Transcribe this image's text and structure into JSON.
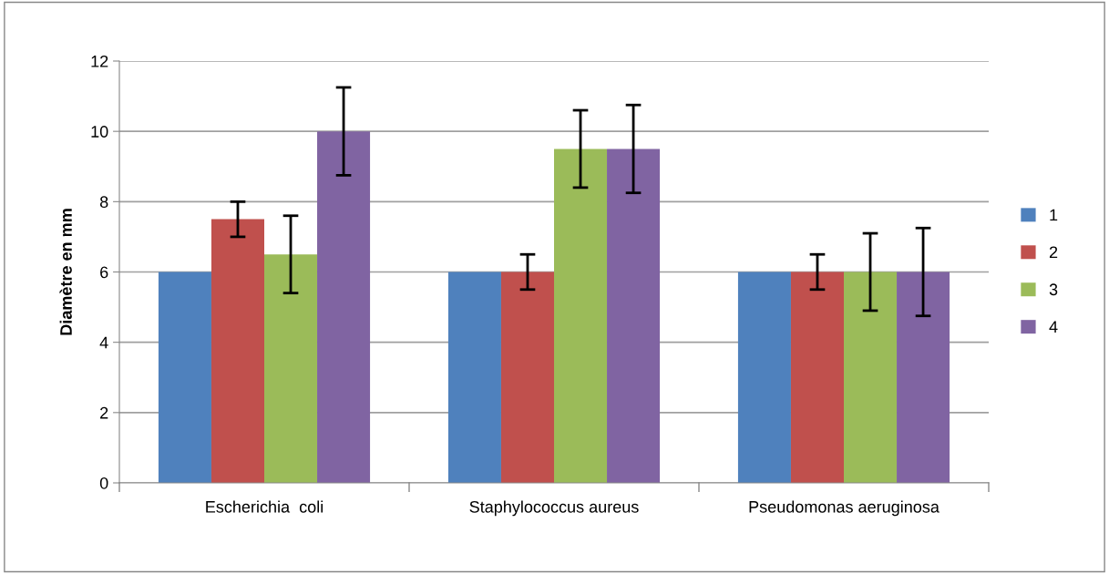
{
  "chart_data": {
    "type": "bar",
    "ylabel": "Diamètre en mm",
    "categories": [
      "Escherichia  coli",
      "Staphylococcus aureus",
      "Pseudomonas aeruginosa"
    ],
    "series": [
      {
        "name": "1",
        "color": "#4f81bd",
        "values": [
          6,
          6,
          6
        ]
      },
      {
        "name": "2",
        "color": "#c0504d",
        "values": [
          7.5,
          6,
          6
        ],
        "errors": [
          0.5,
          0.5,
          0.5
        ]
      },
      {
        "name": "3",
        "color": "#9bbb59",
        "values": [
          6.5,
          9.5,
          6
        ],
        "errors": [
          1.1,
          1.1,
          1.1
        ]
      },
      {
        "name": "4",
        "color": "#8064a2",
        "values": [
          10,
          9.5,
          6
        ],
        "errors": [
          1.25,
          1.25,
          1.25
        ]
      }
    ],
    "ylim": [
      0,
      12
    ],
    "yticks": [
      0,
      2,
      4,
      6,
      8,
      10,
      12
    ],
    "grid": "y",
    "legend": "right"
  }
}
